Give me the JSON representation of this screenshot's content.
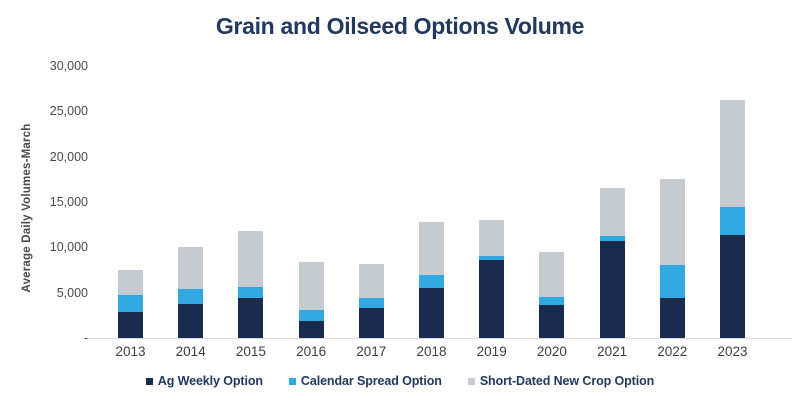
{
  "chart_data": {
    "type": "bar",
    "stacked": true,
    "title": "Grain and Oilseed Options Volume",
    "xlabel": "",
    "ylabel": "Average Daily Volumes-March",
    "categories": [
      "2013",
      "2014",
      "2015",
      "2016",
      "2017",
      "2018",
      "2019",
      "2020",
      "2021",
      "2022",
      "2023"
    ],
    "series": [
      {
        "name": "Ag Weekly Option",
        "color": "#1a2c4e",
        "values": [
          2900,
          3800,
          4400,
          1900,
          3300,
          5500,
          8600,
          3600,
          10700,
          4400,
          11400
        ]
      },
      {
        "name": "Calendar Spread Option",
        "color": "#31a8e0",
        "values": [
          1800,
          1600,
          1200,
          1200,
          1100,
          1500,
          500,
          900,
          500,
          3600,
          3000
        ]
      },
      {
        "name": "Short-Dated New Crop Option",
        "color": "#c6cbd2",
        "values": [
          2800,
          4600,
          6200,
          5300,
          3800,
          5800,
          3900,
          5000,
          5400,
          9500,
          11900
        ]
      }
    ],
    "totals": [
      7500,
      10000,
      11800,
      8400,
      8200,
      12800,
      13000,
      9500,
      16600,
      17500,
      26300
    ],
    "ylim": [
      0,
      30000
    ],
    "ytick_values": [
      0,
      5000,
      10000,
      15000,
      20000,
      25000,
      30000
    ],
    "ytick_labels": [
      "-",
      "5,000",
      "10,000",
      "15,000",
      "20,000",
      "25,000",
      "30,000"
    ],
    "grid": false,
    "legend_position": "bottom"
  }
}
